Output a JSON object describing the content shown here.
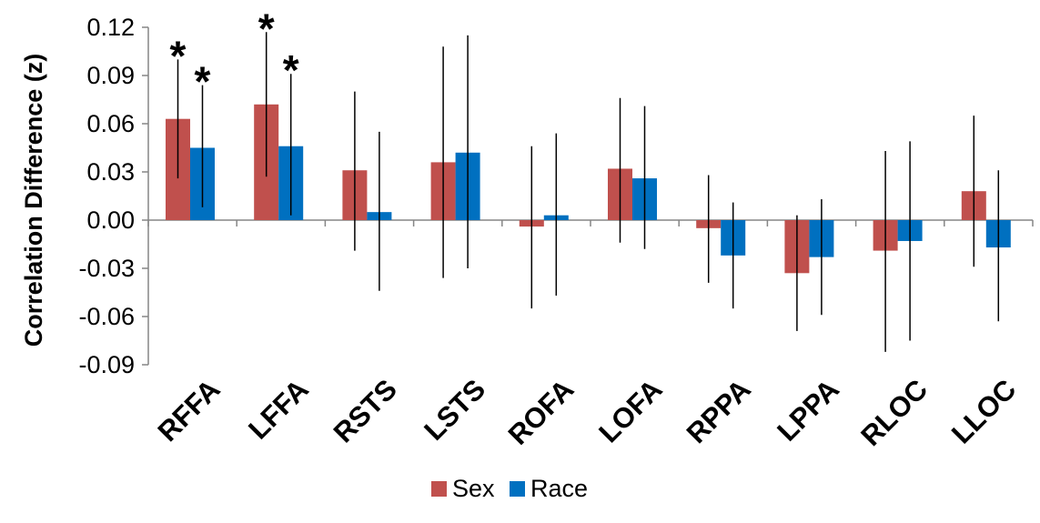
{
  "chart_data": {
    "type": "bar",
    "title": "",
    "xlabel": "",
    "ylabel": "Correlation Difference (z)",
    "ylim": [
      -0.09,
      0.12
    ],
    "yticks": [
      "0.12",
      "0.09",
      "0.06",
      "0.03",
      "0.00",
      "-0.03",
      "-0.06",
      "-0.09"
    ],
    "grid": false,
    "legend_position": "bottom-center",
    "categories": [
      "RFFA",
      "LFFA",
      "RSTS",
      "LSTS",
      "ROFA",
      "LOFA",
      "RPPA",
      "LPPA",
      "RLOC",
      "LLOC"
    ],
    "series": [
      {
        "name": "Sex",
        "color": "#C0504D",
        "values": [
          0.063,
          0.072,
          0.031,
          0.036,
          -0.004,
          0.032,
          -0.005,
          -0.033,
          -0.019,
          0.018
        ],
        "error_low": [
          0.026,
          0.027,
          -0.019,
          -0.036,
          -0.055,
          -0.014,
          -0.039,
          -0.069,
          -0.082,
          -0.029
        ],
        "error_high": [
          0.1,
          0.117,
          0.08,
          0.108,
          0.046,
          0.076,
          0.028,
          0.003,
          0.043,
          0.065
        ],
        "significant": [
          true,
          true,
          false,
          false,
          false,
          false,
          false,
          false,
          false,
          false
        ]
      },
      {
        "name": "Race",
        "color": "#0070C0",
        "values": [
          0.045,
          0.046,
          0.005,
          0.042,
          0.003,
          0.026,
          -0.022,
          -0.023,
          -0.013,
          -0.017
        ],
        "error_low": [
          0.008,
          0.003,
          -0.044,
          -0.03,
          -0.047,
          -0.018,
          -0.055,
          -0.059,
          -0.075,
          -0.063
        ],
        "error_high": [
          0.084,
          0.091,
          0.055,
          0.115,
          0.054,
          0.071,
          0.011,
          0.013,
          0.049,
          0.031
        ],
        "significant": [
          true,
          true,
          false,
          false,
          false,
          false,
          false,
          false,
          false,
          false
        ]
      }
    ],
    "annotation_symbol": "*"
  }
}
